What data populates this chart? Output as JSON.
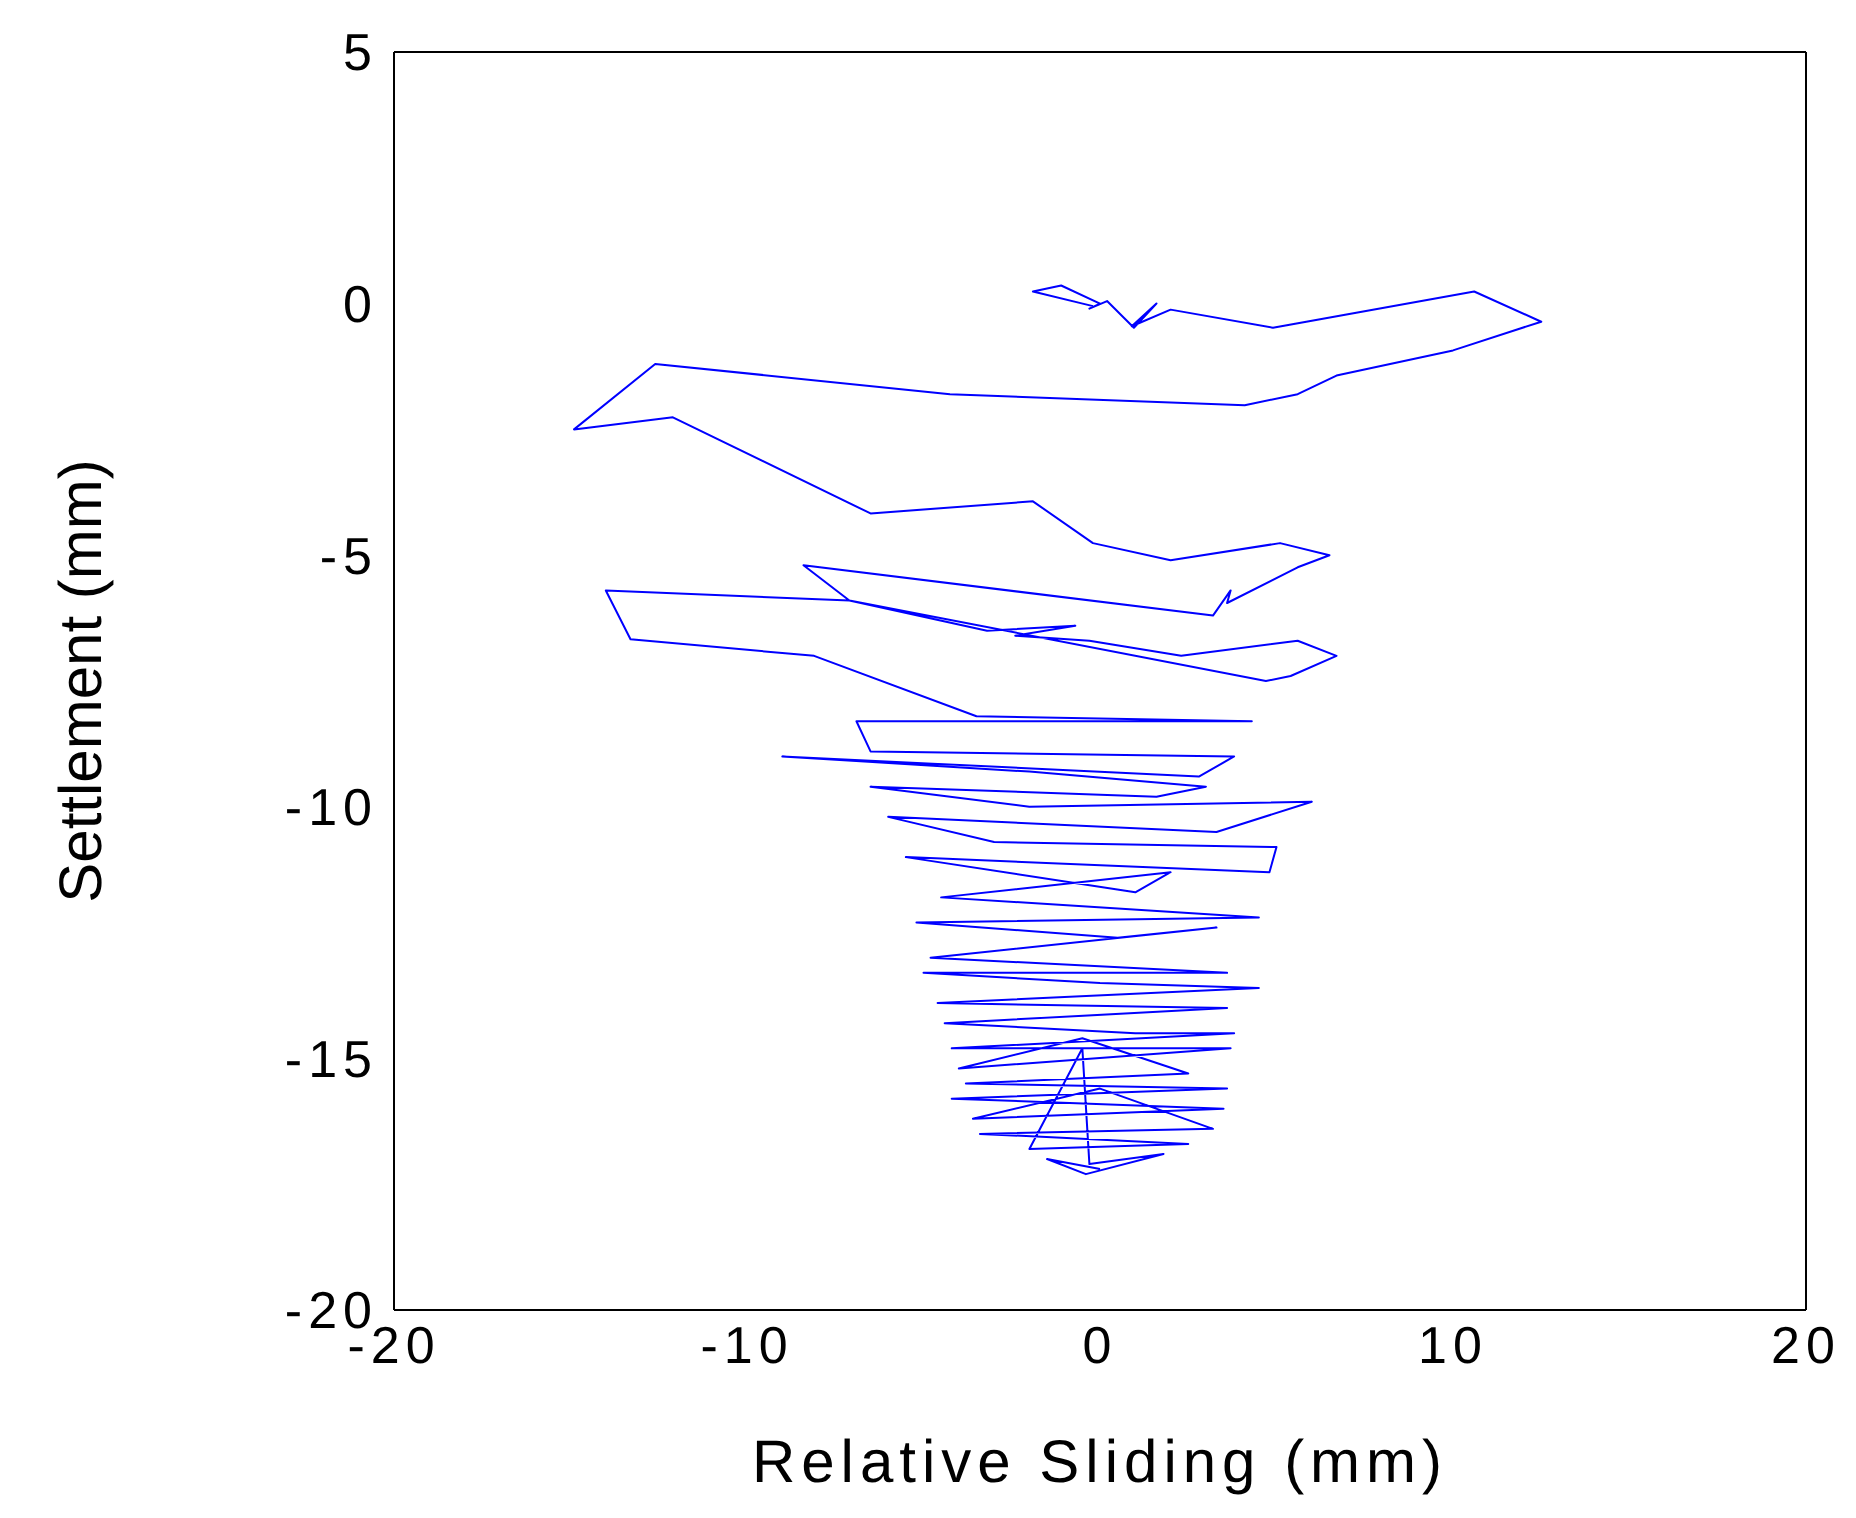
{
  "chart_data": {
    "type": "line",
    "xlabel": "Relative Sliding (mm)",
    "ylabel": "Settlement (mm)",
    "color": "#0000ff",
    "xlim": [
      -20,
      20
    ],
    "xticks": [
      -20,
      -10,
      0,
      10,
      20
    ],
    "ylim": [
      -20,
      5
    ],
    "yticks": [
      -20,
      -15,
      -10,
      -5,
      0,
      5
    ],
    "x": [
      -0.2,
      -1.9,
      -1.1,
      0.0,
      -0.3,
      0.2,
      0.96,
      1.6,
      0.9,
      2.0,
      4.9,
      10.6,
      12.5,
      10.0,
      6.7,
      5.6,
      4.1,
      -4.25,
      -12.6,
      -14.9,
      -12.1,
      -6.5,
      -1.9,
      -0.2,
      2.0,
      5.1,
      6.5,
      5.6,
      3.6,
      3.7,
      3.2,
      -8.4,
      -7.1,
      -3.2,
      -0.7,
      -2.4,
      -0.3,
      2.3,
      5.6,
      6.7,
      5.4,
      4.7,
      -7.1,
      -14.0,
      -13.3,
      -8.1,
      -3.5,
      4.3,
      -6.9,
      -6.5,
      3.8,
      2.8,
      -9.0,
      -2.0,
      3.0,
      1.6,
      -6.5,
      -2.0,
      6.0,
      3.3,
      -6.0,
      -3.0,
      5.0,
      4.8,
      -5.5,
      1.0,
      2.0,
      -4.5,
      4.5,
      -5.2,
      0.5,
      3.3,
      -4.8,
      3.6,
      -5.0,
      0.0,
      4.5,
      -4.6,
      3.6,
      -4.4,
      1.0,
      3.8,
      -4.2,
      3.7,
      -4.0,
      -0.5,
      2.5,
      -3.8,
      3.6,
      -4.2,
      3.5,
      -3.6,
      0.0,
      3.2,
      -3.4,
      2.5,
      -2.0,
      -0.5,
      -0.3,
      1.8,
      -0.4,
      -1.5,
      0.0
    ],
    "values": [
      -0.05,
      0.24,
      0.36,
      0.0,
      -0.1,
      0.05,
      -0.48,
      0.0,
      -0.45,
      -0.12,
      -0.48,
      0.24,
      -0.36,
      -0.93,
      -1.43,
      -1.8,
      -2.02,
      -1.8,
      -1.2,
      -2.5,
      -2.26,
      -4.17,
      -3.93,
      -4.76,
      -5.1,
      -4.76,
      -5.0,
      -5.24,
      -5.95,
      -5.7,
      -6.2,
      -5.2,
      -5.9,
      -6.5,
      -6.4,
      -6.6,
      -6.7,
      -7.0,
      -6.7,
      -7.0,
      -7.4,
      -7.5,
      -5.9,
      -5.7,
      -6.67,
      -7.0,
      -8.2,
      -8.3,
      -8.3,
      -8.9,
      -9.0,
      -9.4,
      -9.0,
      -9.3,
      -9.6,
      -9.8,
      -9.6,
      -10.0,
      -9.9,
      -10.5,
      -10.2,
      -10.7,
      -10.8,
      -11.3,
      -11.0,
      -11.7,
      -11.3,
      -11.8,
      -12.2,
      -12.3,
      -12.6,
      -12.4,
      -13.0,
      -13.3,
      -13.3,
      -13.5,
      -13.6,
      -13.9,
      -14.0,
      -14.3,
      -14.5,
      -14.5,
      -14.8,
      -14.8,
      -15.2,
      -14.6,
      -15.3,
      -15.5,
      -15.6,
      -15.8,
      -16.0,
      -16.2,
      -15.6,
      -16.4,
      -16.5,
      -16.7,
      -16.8,
      -14.8,
      -17.1,
      -16.9,
      -17.3,
      -17.0,
      -17.2
    ]
  }
}
